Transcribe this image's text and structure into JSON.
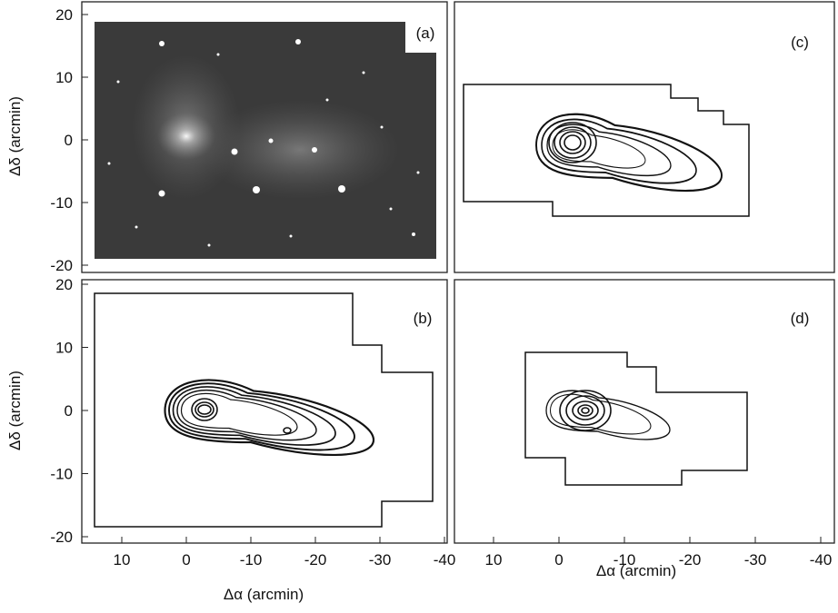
{
  "panels": [
    {
      "label": "(a)"
    },
    {
      "label": "(c)"
    },
    {
      "label": "(b)"
    },
    {
      "label": "(d)"
    }
  ],
  "y_axes": [
    {
      "label": "Δδ (arcmin)",
      "ticks": [
        20,
        10,
        0,
        -10,
        -20
      ]
    },
    {
      "label": "Δδ (arcmin)",
      "ticks": [
        20,
        10,
        0,
        -10,
        -20
      ]
    }
  ],
  "x_axes": [
    {
      "label": "Δα (arcmin)",
      "ticks": [
        10,
        0,
        -10,
        -20,
        -30,
        -40
      ]
    },
    {
      "label": "Δα (arcmin)",
      "ticks": [
        10,
        0,
        -10,
        -20,
        -30,
        -40
      ]
    }
  ]
}
